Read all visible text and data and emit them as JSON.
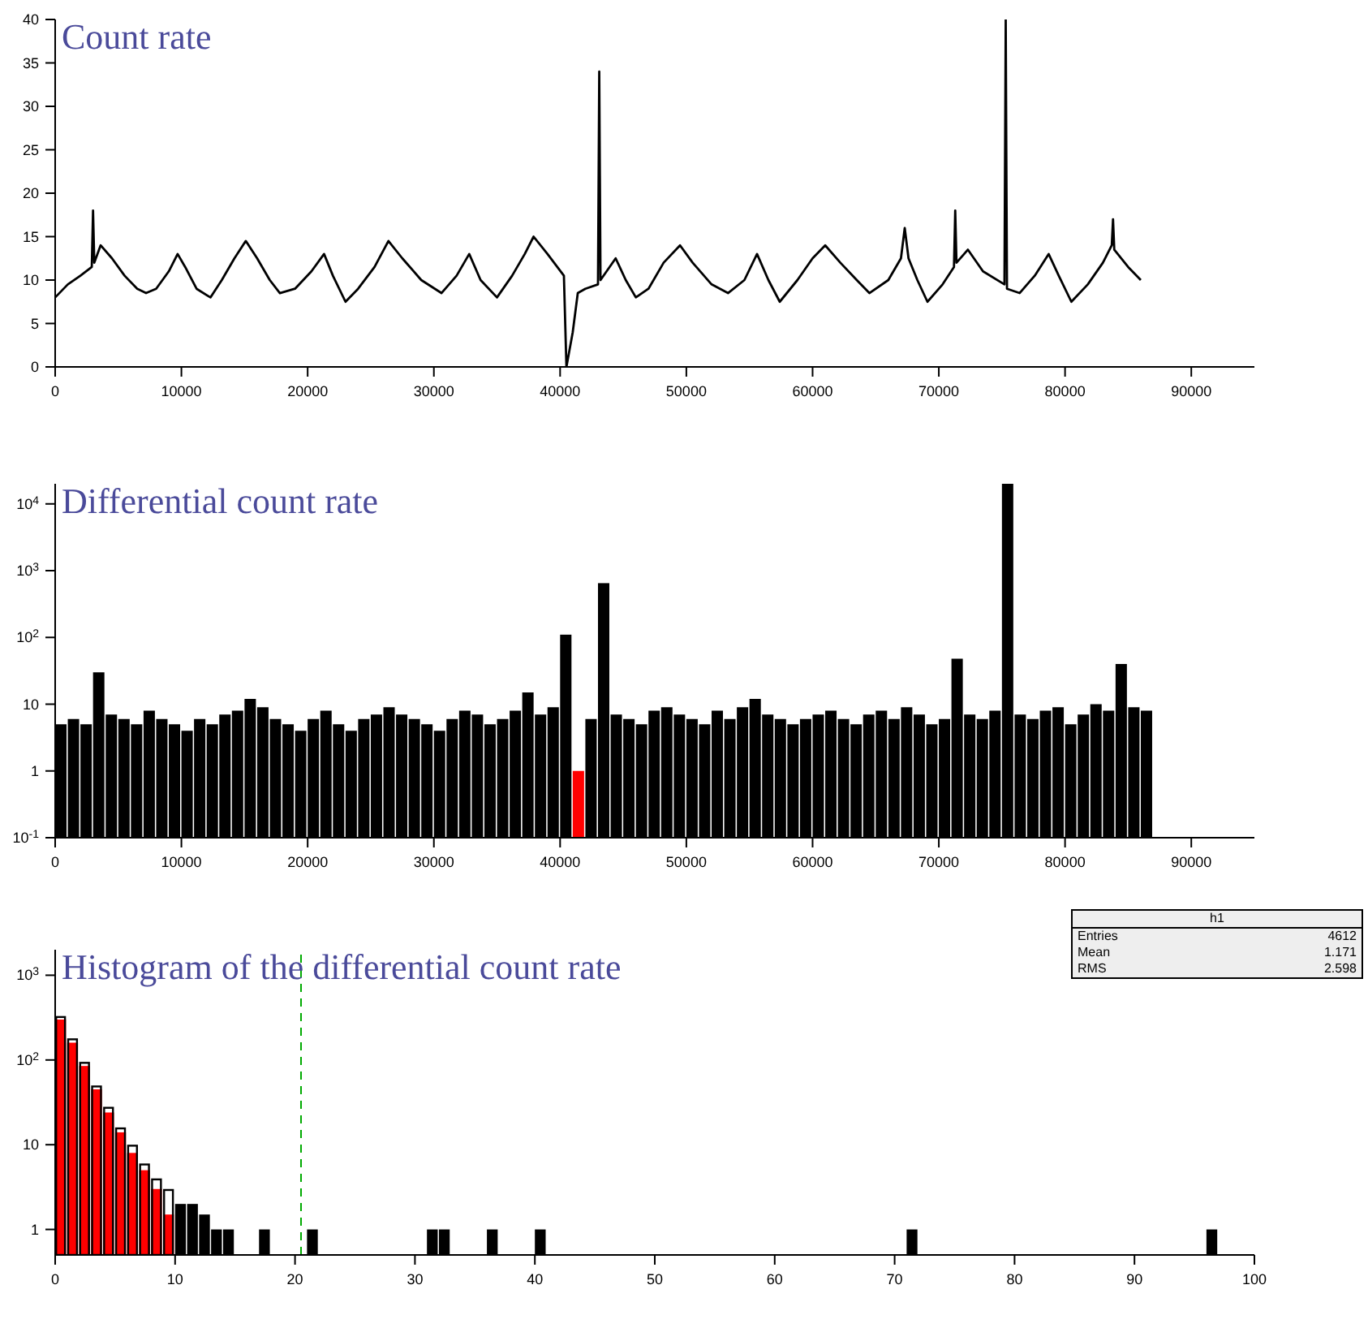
{
  "chart_data": [
    {
      "type": "line",
      "title": "Count rate",
      "color": "#000000",
      "x": [
        0,
        1000,
        2000,
        2900,
        3000,
        3100,
        3600,
        4500,
        5500,
        6500,
        7200,
        8000,
        9000,
        9700,
        10300,
        11200,
        12300,
        13200,
        14200,
        15100,
        16000,
        17000,
        17800,
        19000,
        20300,
        21300,
        22000,
        23000,
        24000,
        25300,
        26400,
        27500,
        29000,
        30600,
        31800,
        32800,
        33700,
        35000,
        36200,
        37200,
        37900,
        39000,
        40300,
        40500,
        41000,
        41400,
        42000,
        43000,
        43100,
        43150,
        43200,
        44400,
        45200,
        46000,
        47000,
        48200,
        49500,
        50500,
        52000,
        53300,
        54600,
        55600,
        56500,
        57400,
        58800,
        60000,
        61000,
        62200,
        63500,
        64500,
        66000,
        67000,
        67300,
        67600,
        68300,
        69100,
        70300,
        71200,
        71300,
        71400,
        72300,
        73500,
        75200,
        75300,
        75350,
        75400,
        76400,
        77600,
        78700,
        79500,
        80500,
        81800,
        83000,
        83700,
        83800,
        83900,
        85000,
        86000
      ],
      "values": [
        8,
        9.5,
        10.5,
        11.5,
        18,
        12,
        14,
        12.5,
        10.5,
        9,
        8.5,
        9,
        11,
        13,
        11.5,
        9,
        8,
        10,
        12.5,
        14.5,
        12.5,
        10,
        8.5,
        9,
        11,
        13,
        10.5,
        7.5,
        9,
        11.5,
        14.5,
        12.5,
        10,
        8.5,
        10.5,
        13,
        10,
        8,
        10.5,
        13,
        15,
        13,
        10.5,
        0,
        4,
        8.5,
        9,
        9.5,
        34,
        22,
        10,
        12.5,
        10,
        8,
        9,
        12,
        14,
        12,
        9.5,
        8.5,
        10,
        13,
        10,
        7.5,
        10,
        12.5,
        14,
        12,
        10,
        8.5,
        10,
        12.5,
        16,
        12.5,
        10,
        7.5,
        9.5,
        11.5,
        18,
        12,
        13.5,
        11,
        9.5,
        40,
        24,
        9,
        8.5,
        10.5,
        13,
        10.5,
        7.5,
        9.5,
        12,
        14,
        17,
        13.5,
        11.5,
        10
      ],
      "xlim": [
        0,
        95000
      ],
      "xticks": [
        0,
        10000,
        20000,
        30000,
        40000,
        50000,
        60000,
        70000,
        80000,
        90000
      ],
      "ylim": [
        0,
        40
      ],
      "yticks": [
        0,
        5,
        10,
        15,
        20,
        25,
        30,
        35,
        40
      ]
    },
    {
      "type": "histogram",
      "title": "Differential count rate",
      "log": true,
      "bins": [
        0,
        1000,
        2000,
        3000,
        4000,
        5000,
        6000,
        7000,
        8000,
        9000,
        10000,
        11000,
        12000,
        13000,
        14000,
        15000,
        16000,
        17000,
        18000,
        19000,
        20000,
        21000,
        22000,
        23000,
        24000,
        25000,
        26000,
        27000,
        28000,
        29000,
        30000,
        31000,
        32000,
        33000,
        34000,
        35000,
        36000,
        37000,
        38000,
        39000,
        40000,
        41000,
        42000,
        43000,
        44000,
        45000,
        46000,
        47000,
        48000,
        49000,
        50000,
        51000,
        52000,
        53000,
        54000,
        55000,
        56000,
        57000,
        58000,
        59000,
        60000,
        61000,
        62000,
        63000,
        64000,
        65000,
        66000,
        67000,
        68000,
        69000,
        70000,
        71000,
        72000,
        73000,
        74000,
        75000,
        76000,
        77000,
        78000,
        79000,
        80000,
        81000,
        82000,
        83000,
        84000,
        85000,
        86000,
        87000
      ],
      "series": [
        {
          "color": "#000000",
          "values": [
            5,
            6,
            5,
            30,
            7,
            6,
            5,
            8,
            6,
            5,
            4,
            6,
            5,
            7,
            8,
            12,
            9,
            6,
            5,
            4,
            6,
            8,
            5,
            4,
            6,
            7,
            9,
            7,
            6,
            5,
            4,
            6,
            8,
            7,
            5,
            6,
            8,
            15,
            7,
            9,
            110,
            null,
            6,
            650,
            7,
            6,
            5,
            8,
            9,
            7,
            6,
            5,
            8,
            6,
            9,
            12,
            7,
            6,
            5,
            6,
            7,
            8,
            6,
            5,
            7,
            8,
            6,
            9,
            7,
            5,
            6,
            48,
            7,
            6,
            8,
            20000,
            7,
            6,
            8,
            9,
            5,
            7,
            10,
            8,
            40,
            9,
            8
          ]
        },
        {
          "color": "#ff0000",
          "values": [
            null,
            null,
            null,
            null,
            null,
            null,
            null,
            null,
            null,
            null,
            null,
            null,
            null,
            null,
            null,
            null,
            null,
            null,
            null,
            null,
            null,
            null,
            null,
            null,
            null,
            null,
            null,
            null,
            null,
            null,
            null,
            null,
            null,
            null,
            null,
            null,
            null,
            null,
            null,
            null,
            null,
            1,
            null,
            null,
            null,
            null,
            null,
            null,
            null,
            null,
            null,
            null,
            null,
            null,
            null,
            null,
            null,
            null,
            null,
            null,
            null,
            null,
            null,
            null,
            null,
            null,
            null,
            null,
            null,
            null,
            null,
            null,
            null,
            null,
            null,
            null,
            null,
            null,
            null,
            null,
            null,
            null,
            null,
            null,
            null,
            null,
            null
          ]
        }
      ],
      "xlim": [
        0,
        95000
      ],
      "xticks": [
        0,
        10000,
        20000,
        30000,
        40000,
        50000,
        60000,
        70000,
        80000,
        90000
      ],
      "ylim": [
        0.1,
        20000
      ],
      "yticks": [
        {
          "value": 0.1,
          "label": "10$^{-1}$"
        },
        1,
        10,
        {
          "value": 100,
          "label": "10$^{2}$"
        },
        {
          "value": 1000,
          "label": "10$^{3}$"
        },
        {
          "value": 10000,
          "label": "10$^{4}$"
        }
      ]
    },
    {
      "type": "histogram",
      "title": "Histogram of the differential count rate",
      "log": true,
      "bins": [
        0,
        1,
        2,
        3,
        4,
        5,
        6,
        7,
        8,
        9,
        10,
        11,
        12,
        13,
        14,
        15,
        16,
        17,
        18,
        19,
        20,
        21,
        22,
        23,
        24,
        25,
        26,
        27,
        28,
        29,
        30,
        31,
        32,
        33,
        34,
        35,
        36,
        37,
        38,
        39,
        40,
        41,
        42,
        43,
        44,
        45,
        46,
        47,
        48,
        49,
        50,
        51,
        52,
        53,
        54,
        55,
        56,
        57,
        58,
        59,
        60,
        61,
        62,
        63,
        64,
        65,
        66,
        67,
        68,
        69,
        70,
        71,
        72,
        73,
        74,
        75,
        76,
        77,
        78,
        79,
        80,
        81,
        82,
        83,
        84,
        85,
        86,
        87,
        88,
        89,
        90,
        91,
        92,
        93,
        94,
        95,
        96,
        97,
        98,
        99,
        100
      ],
      "series": [
        {
          "color": "#000000",
          "values": [
            330,
            180,
            95,
            50,
            28,
            16,
            10,
            6,
            4,
            3,
            2,
            2,
            1.5,
            1,
            1,
            null,
            null,
            1,
            null,
            null,
            null,
            1,
            null,
            null,
            null,
            null,
            null,
            null,
            null,
            null,
            null,
            1,
            1,
            null,
            null,
            null,
            1,
            null,
            null,
            null,
            1,
            null,
            null,
            null,
            null,
            null,
            null,
            null,
            null,
            null,
            null,
            null,
            null,
            null,
            null,
            null,
            null,
            null,
            null,
            null,
            null,
            null,
            null,
            null,
            null,
            null,
            null,
            null,
            null,
            null,
            null,
            1,
            null,
            null,
            null,
            null,
            null,
            null,
            null,
            null,
            null,
            null,
            null,
            null,
            null,
            null,
            null,
            null,
            null,
            null,
            null,
            null,
            null,
            null,
            null,
            null,
            1,
            null,
            null,
            null
          ]
        },
        {
          "color": "#ff0000",
          "values": [
            300,
            160,
            85,
            45,
            24,
            14,
            8,
            5,
            3,
            1.5,
            null,
            null,
            null,
            null,
            null,
            null,
            null,
            null,
            null,
            null,
            null,
            null,
            null,
            null,
            null,
            null,
            null,
            null,
            null,
            null,
            null,
            null,
            null,
            null,
            null,
            null,
            null,
            null,
            null,
            null,
            null,
            null,
            null,
            null,
            null,
            null,
            null,
            null,
            null,
            null,
            null,
            null,
            null,
            null,
            null,
            null,
            null,
            null,
            null,
            null,
            null,
            null,
            null,
            null,
            null,
            null,
            null,
            null,
            null,
            null,
            null,
            null,
            null,
            null,
            null,
            null,
            null,
            null,
            null,
            null,
            null,
            null,
            null,
            null,
            null,
            null,
            null,
            null,
            null,
            null,
            null,
            null,
            null,
            null,
            null,
            null,
            null,
            null,
            null,
            null
          ]
        }
      ],
      "xlim": [
        0,
        100
      ],
      "xticks": [
        0,
        10,
        20,
        30,
        40,
        50,
        60,
        70,
        80,
        90,
        100
      ],
      "ylim": [
        0.5,
        2000
      ],
      "yticks": [
        1,
        10,
        {
          "value": 100,
          "label": "10$^{2}$"
        },
        {
          "value": 1000,
          "label": "10$^{3}$"
        }
      ],
      "ref_lines": [
        {
          "axis": "x",
          "value": 20.5,
          "color": "#00aa00",
          "line_style": "dashed"
        }
      ],
      "annotations": [
        "h1",
        "Entries",
        "4612",
        "Mean",
        "1.171",
        "RMS",
        "2.598"
      ]
    }
  ]
}
